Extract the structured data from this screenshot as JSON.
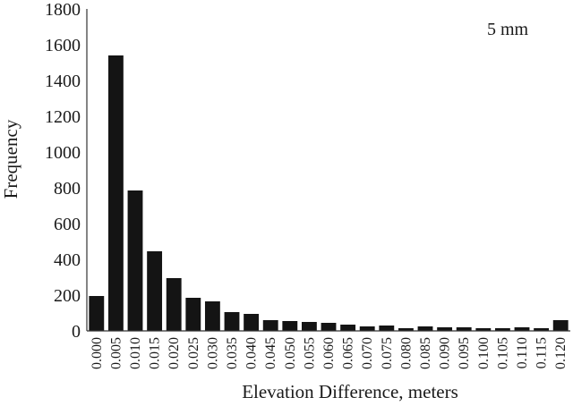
{
  "chart_data": {
    "type": "bar",
    "annotation": "5 mm",
    "xlabel": "Elevation Difference, meters",
    "ylabel": "Frequency",
    "ylim": [
      0,
      1800
    ],
    "yticks": [
      "0",
      "200",
      "400",
      "600",
      "800",
      "1000",
      "1200",
      "1400",
      "1600",
      "1800"
    ],
    "categories": [
      "0.000",
      "0.005",
      "0.010",
      "0.015",
      "0.020",
      "0.025",
      "0.030",
      "0.035",
      "0.040",
      "0.045",
      "0.050",
      "0.055",
      "0.060",
      "0.065",
      "0.070",
      "0.075",
      "0.080",
      "0.085",
      "0.090",
      "0.095",
      "0.100",
      "0.105",
      "0.110",
      "0.115",
      "0.120"
    ],
    "values": [
      195,
      1540,
      785,
      445,
      295,
      185,
      165,
      105,
      95,
      60,
      55,
      50,
      45,
      35,
      25,
      30,
      15,
      25,
      20,
      20,
      15,
      15,
      20,
      15,
      60
    ],
    "bar_color": "#141414",
    "axis_color": "#333333"
  }
}
